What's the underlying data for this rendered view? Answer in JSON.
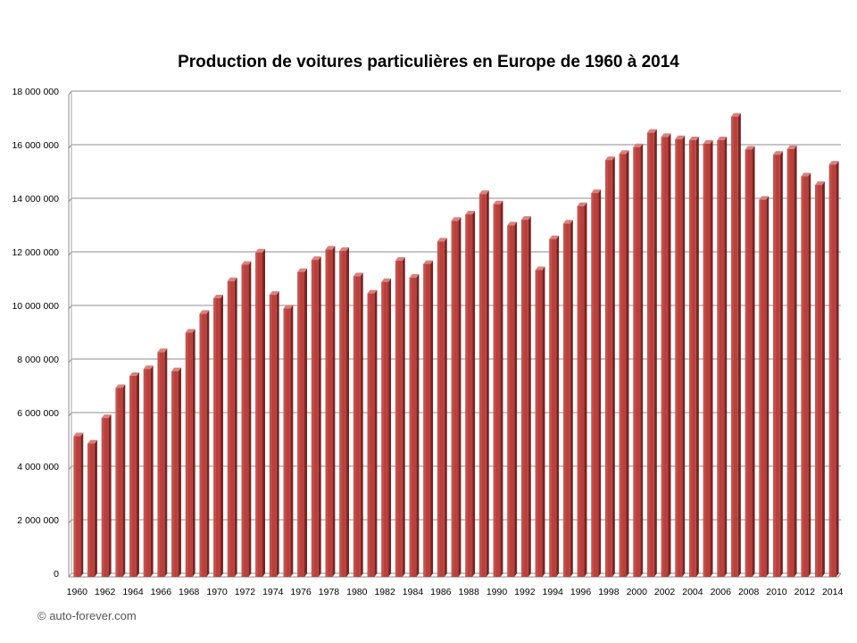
{
  "copyright": "© auto-forever.com",
  "chart_data": {
    "type": "bar",
    "title": "Production de voitures particulières en Europe de 1960 à 2014",
    "xlabel": "",
    "ylabel": "",
    "ylim": [
      0,
      18000000
    ],
    "yticks": [
      0,
      2000000,
      4000000,
      6000000,
      8000000,
      10000000,
      12000000,
      14000000,
      16000000,
      18000000
    ],
    "ytick_labels": [
      "0",
      "2 000 000",
      "4 000 000",
      "6 000 000",
      "8 000 000",
      "10 000 000",
      "12 000 000",
      "14 000 000",
      "16 000 000",
      "18 000 000"
    ],
    "categories": [
      1960,
      1961,
      1962,
      1963,
      1964,
      1965,
      1966,
      1967,
      1968,
      1969,
      1970,
      1971,
      1972,
      1973,
      1974,
      1975,
      1976,
      1977,
      1978,
      1979,
      1980,
      1981,
      1982,
      1983,
      1984,
      1985,
      1986,
      1987,
      1988,
      1989,
      1990,
      1991,
      1992,
      1993,
      1994,
      1995,
      1996,
      1997,
      1998,
      1999,
      2000,
      2001,
      2002,
      2003,
      2004,
      2005,
      2006,
      2007,
      2008,
      2009,
      2010,
      2011,
      2012,
      2013,
      2014
    ],
    "xtick_labels": [
      "1960",
      "1962",
      "1964",
      "1966",
      "1968",
      "1970",
      "1972",
      "1974",
      "1976",
      "1978",
      "1980",
      "1982",
      "1984",
      "1986",
      "1988",
      "1990",
      "1992",
      "1994",
      "1996",
      "1998",
      "2000",
      "2002",
      "2004",
      "2006",
      "2008",
      "2010",
      "2012",
      "2014"
    ],
    "values": [
      5250000,
      4980000,
      5930000,
      7050000,
      7500000,
      7760000,
      8390000,
      7680000,
      9120000,
      9820000,
      10400000,
      11040000,
      11650000,
      12110000,
      10530000,
      10020000,
      11380000,
      11830000,
      12220000,
      12170000,
      11220000,
      10580000,
      11010000,
      11800000,
      11170000,
      11680000,
      12520000,
      13290000,
      13530000,
      14290000,
      13910000,
      13120000,
      13330000,
      11450000,
      12610000,
      13190000,
      13840000,
      14330000,
      15560000,
      15790000,
      16040000,
      16580000,
      16420000,
      16340000,
      16300000,
      16170000,
      16300000,
      17180000,
      15950000,
      14080000,
      15760000,
      15970000,
      14950000,
      14630000,
      15390000
    ],
    "grid": true,
    "legend": "none",
    "bar_color": "#b9403c"
  }
}
